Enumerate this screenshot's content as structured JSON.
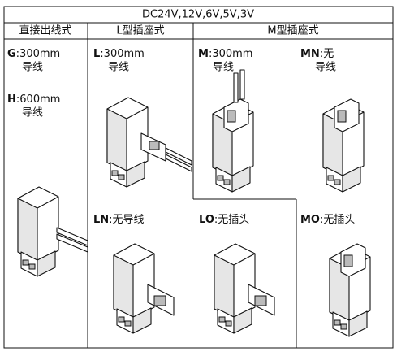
{
  "table": {
    "voltage": "DC24V,12V,6V,5V,3V",
    "columns": [
      "直接出线式",
      "L型插座式",
      "M型插座式"
    ],
    "items": [
      {
        "code": "G",
        "spec": ":300mm",
        "note": "导线"
      },
      {
        "code": "H",
        "spec": ":600mm",
        "note": "导线"
      },
      {
        "code": "L",
        "spec": ":300mm",
        "note": "导线"
      },
      {
        "code": "M",
        "spec": ":300mm",
        "note": "导线"
      },
      {
        "code": "MN",
        "spec": ":无",
        "note": "导线"
      },
      {
        "code": "LN",
        "spec": ":无导线"
      },
      {
        "code": "LO",
        "spec": ":无插头"
      },
      {
        "code": "MO",
        "spec": ":无插头"
      }
    ]
  }
}
